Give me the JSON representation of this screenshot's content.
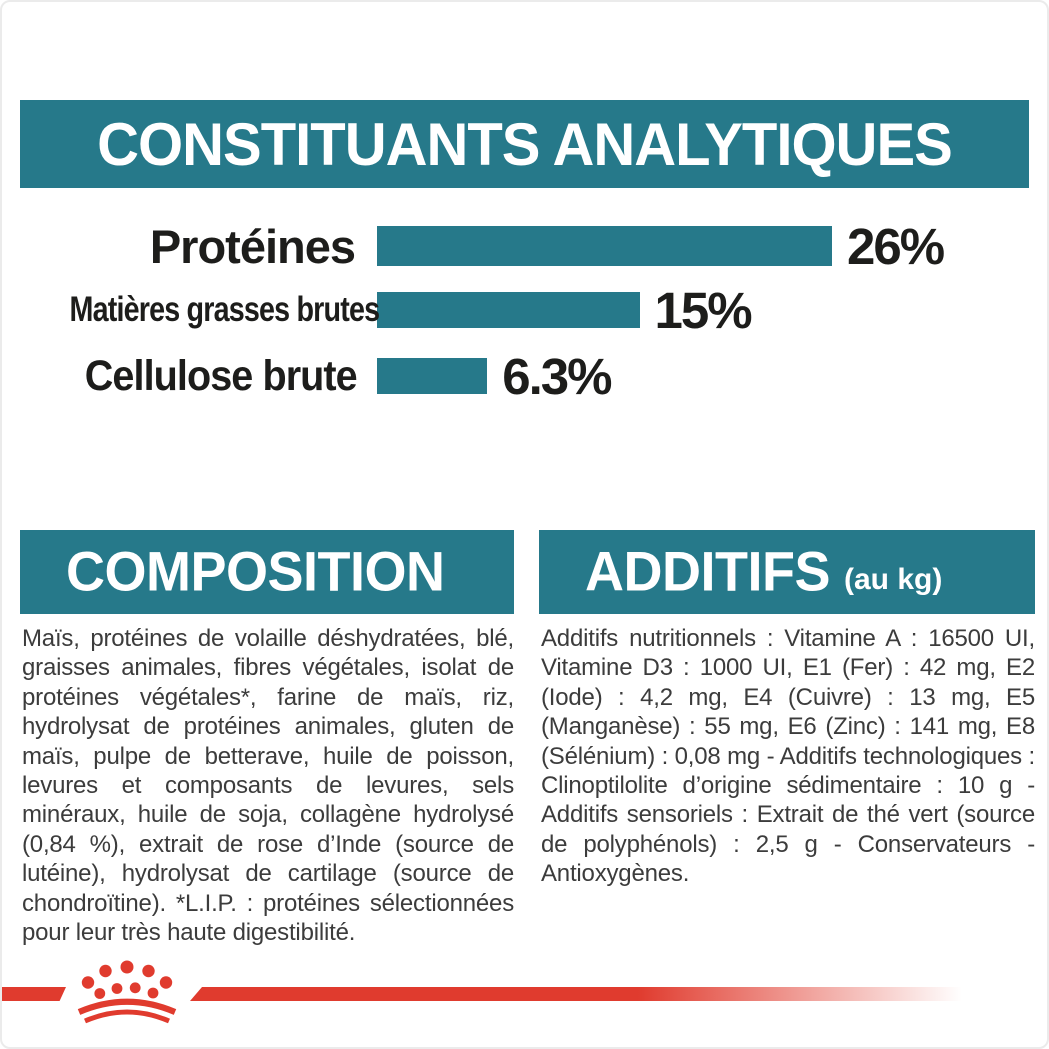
{
  "colors": {
    "teal": "#26798A",
    "red": "#E03B2E",
    "ink": "#1D1D1B",
    "body_text": "#3C3C3C"
  },
  "analytical_section": {
    "title": "CONSTITUANTS ANALYTIQUES"
  },
  "chart_data": {
    "type": "bar",
    "orientation": "horizontal",
    "categories": [
      "Protéines",
      "Matières grasses brutes",
      "Cellulose brute"
    ],
    "values": [
      26,
      15,
      6.3
    ],
    "value_labels": [
      "26%",
      "15%",
      "6.3%"
    ],
    "bar_color": "#26798A",
    "xlim": [
      0,
      28
    ],
    "grid": false,
    "legend": false,
    "title": "CONSTITUANTS ANALYTIQUES",
    "xlabel": "",
    "ylabel": ""
  },
  "composition_section": {
    "title": "COMPOSITION",
    "body": "Maïs, protéines de volaille déshydratées, blé, graisses animales, fibres végétales, isolat de protéines végétales*, farine de maïs, riz, hydrolysat de protéines animales, gluten de maïs, pulpe de betterave, huile de poisson, levures et composants de levures, sels minéraux, huile de soja, collagène hydrolysé (0,84 %), extrait de rose d’Inde (source de lutéine), hydrolysat de cartilage (source de chondroïtine). *L.I.P. : protéines sélectionnées pour leur très haute digestibilité."
  },
  "additifs_section": {
    "title": "ADDITIFS",
    "title_suffix": "(au kg)",
    "body": "Additifs nutritionnels : Vitamine A : 16500 UI, Vitamine D3 : 1000 UI, E1 (Fer) : 42 mg, E2 (Iode) : 4,2 mg, E4 (Cuivre) : 13 mg, E5 (Manganèse) : 55 mg, E6 (Zinc) : 141 mg, E8 (Sélénium) : 0,08 mg - Additifs technologiques : Clinoptilolite d’origine sédimentaire : 10 g - Additifs sensoriels : Extrait de thé vert (source de polyphénols) : 2,5 g - Conservateurs - Antioxygènes."
  },
  "footer": {
    "logo": "royal-canin-crown-logo"
  }
}
